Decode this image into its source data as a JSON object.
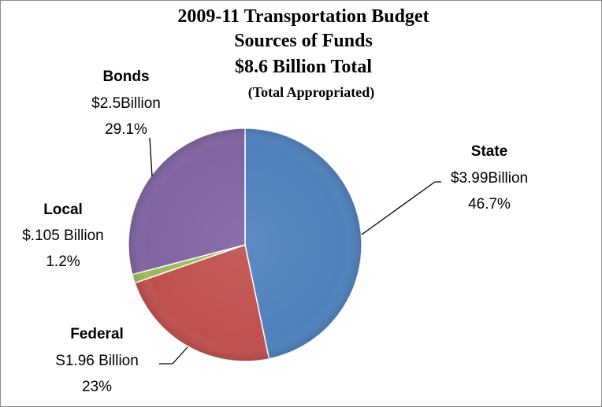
{
  "chart_data": {
    "type": "pie",
    "title": [
      "2009-11 Transportation Budget",
      "Sources of Funds",
      "$8.6 Billion Total",
      "(Total Appropriated)"
    ],
    "slices": [
      {
        "name": "State",
        "amount": "$3.99Billion",
        "percent_label": "46.7%",
        "value": 46.7,
        "color": "#4f81bd"
      },
      {
        "name": "Federal",
        "amount": "S1.96 Billion",
        "percent_label": "23%",
        "value": 23.0,
        "color": "#c0504d"
      },
      {
        "name": "Local",
        "amount": "$.105 Billion",
        "percent_label": "1.2%",
        "value": 1.2,
        "color": "#9bbb59"
      },
      {
        "name": "Bonds",
        "amount": "$2.5Billion",
        "percent_label": "29.1%",
        "value": 29.1,
        "color": "#8064a2"
      }
    ]
  }
}
